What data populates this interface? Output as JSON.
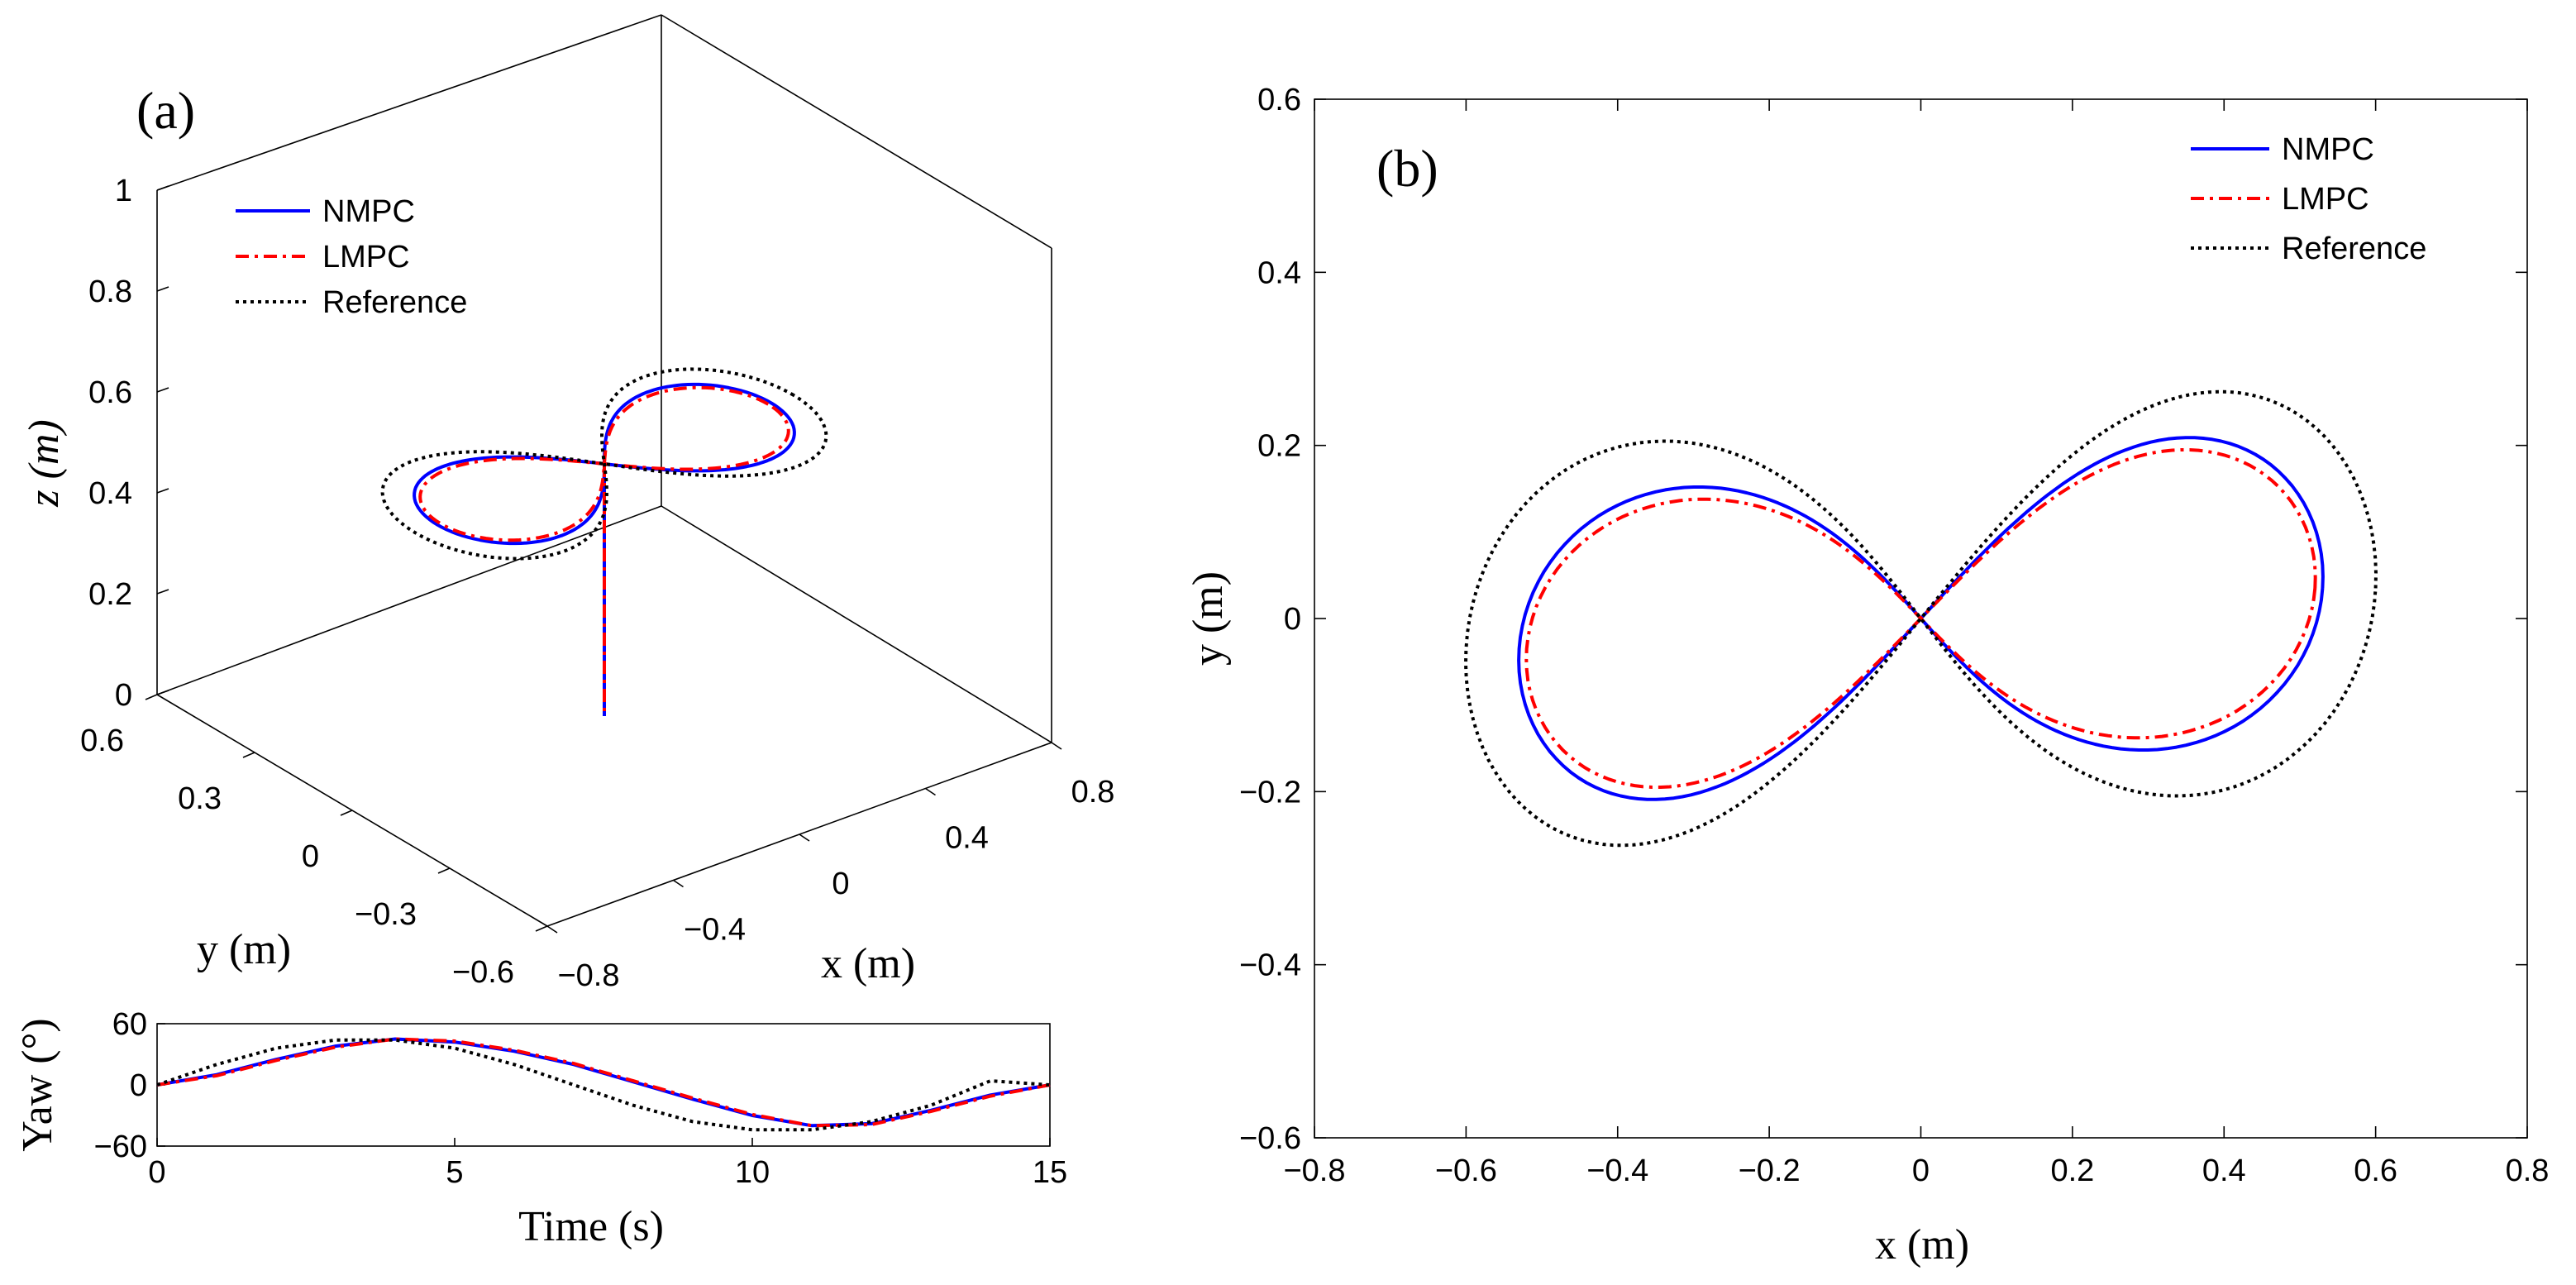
{
  "chart_data": [
    {
      "panel": "(a)",
      "type": "line3d",
      "xlabel": "x (m)",
      "ylabel": "y (m)",
      "zlabel": "z (m)",
      "xlim": [
        -0.8,
        0.8
      ],
      "ylim": [
        -0.6,
        0.6
      ],
      "zlim": [
        0,
        1
      ],
      "x_ticks": [
        "0.8",
        "0.4",
        "0",
        "−0.4",
        "−0.8"
      ],
      "y_ticks": [
        "0.6",
        "0.3",
        "0",
        "−0.3",
        "−0.6"
      ],
      "z_ticks": [
        "1",
        "0.8",
        "0.6",
        "0.4",
        "0.2",
        "0"
      ],
      "legend": [
        "NMPC",
        "LMPC",
        "Reference"
      ],
      "series": [
        {
          "name": "NMPC",
          "color": "#0000ff",
          "style": "solid",
          "description": "figure-eight at z = 0.5 m, takeoff from z = 0"
        },
        {
          "name": "LMPC",
          "color": "#ff0000",
          "style": "dashdot",
          "description": "figure-eight at z = 0.5 m, takeoff from z = 0"
        },
        {
          "name": "Reference",
          "color": "#000000",
          "style": "dotted",
          "description": "figure-eight at z = 0.5 m"
        }
      ]
    },
    {
      "panel": "yaw",
      "type": "line",
      "xlabel": "Time (s)",
      "ylabel": "Yaw (°)",
      "xlim": [
        0,
        15
      ],
      "ylim": [
        -60,
        60
      ],
      "x_ticks": [
        "0",
        "5",
        "10",
        "15"
      ],
      "y_ticks": [
        "60",
        "0",
        "−60"
      ],
      "series": [
        {
          "name": "NMPC",
          "color": "#0000ff",
          "style": "solid",
          "x": [
            0,
            1,
            2,
            3,
            4,
            5,
            6,
            7,
            8,
            9,
            10,
            11,
            12,
            13,
            14,
            15
          ],
          "y": [
            0,
            10,
            25,
            38,
            45,
            42,
            33,
            20,
            3,
            -14,
            -30,
            -40,
            -38,
            -25,
            -10,
            0
          ]
        },
        {
          "name": "LMPC",
          "color": "#ff0000",
          "style": "dashdot",
          "x": [
            0,
            1,
            2,
            3,
            4,
            5,
            6,
            7,
            8,
            9,
            10,
            11,
            12,
            13,
            14,
            15
          ],
          "y": [
            0,
            9,
            24,
            37,
            45,
            43,
            34,
            21,
            4,
            -13,
            -29,
            -40,
            -39,
            -26,
            -11,
            0
          ]
        },
        {
          "name": "Reference",
          "color": "#000000",
          "style": "dotted",
          "x": [
            0,
            1,
            2,
            3,
            4,
            5,
            6,
            7,
            8,
            9,
            10,
            11,
            12,
            13,
            14,
            15
          ],
          "y": [
            0,
            20,
            36,
            44,
            44,
            36,
            20,
            0,
            -20,
            -36,
            -44,
            -44,
            -36,
            -20,
            4,
            0
          ]
        }
      ]
    },
    {
      "panel": "(b)",
      "type": "line",
      "xlabel": "x (m)",
      "ylabel": "y (m)",
      "xlim": [
        -0.8,
        0.8
      ],
      "ylim": [
        -0.6,
        0.6
      ],
      "x_ticks": [
        "−0.8",
        "−0.6",
        "−0.4",
        "−0.2",
        "0",
        "0.2",
        "0.4",
        "0.6",
        "0.8"
      ],
      "y_ticks": [
        "0.6",
        "0.4",
        "0.2",
        "0",
        "−0.2",
        "−0.4",
        "−0.6"
      ],
      "legend": [
        "NMPC",
        "LMPC",
        "Reference"
      ],
      "legend_position": "top-right",
      "series": [
        {
          "name": "NMPC",
          "color": "#0000ff",
          "style": "solid",
          "amp_x": 0.53,
          "amp_y": 0.255
        },
        {
          "name": "LMPC",
          "color": "#ff0000",
          "style": "dashdot",
          "amp_x": 0.52,
          "amp_y": 0.235
        },
        {
          "name": "Reference",
          "color": "#000000",
          "style": "dotted",
          "amp_x": 0.6,
          "amp_y": 0.33
        }
      ]
    }
  ],
  "labels": {
    "panel_a": "(a)",
    "panel_b": "(b)",
    "legend_a": [
      "NMPC",
      "LMPC",
      "Reference"
    ],
    "legend_b": [
      "NMPC",
      "LMPC",
      "Reference"
    ],
    "xlabel_3d": "x (m)",
    "ylabel_3d": "y (m)",
    "zlabel_3d": "z (m)",
    "yaw_xlabel": "Time (s)",
    "yaw_ylabel": "Yaw (°)",
    "xlabel_b": "x (m)",
    "ylabel_b": "y (m)"
  }
}
